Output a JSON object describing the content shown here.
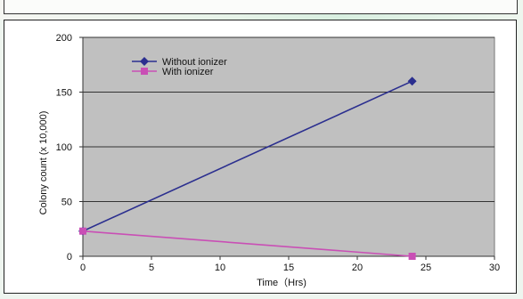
{
  "chart_data": {
    "type": "line",
    "xlabel": "Time（Hrs)",
    "ylabel": "Colony count (x 10,000)",
    "xlim": [
      0,
      30
    ],
    "ylim": [
      0,
      200
    ],
    "xticks": [
      0,
      5,
      10,
      15,
      20,
      25,
      30
    ],
    "yticks": [
      0,
      50,
      100,
      150,
      200
    ],
    "grid": "horizontal",
    "legend_position": "top-left",
    "plot_background": "#c0c0c0",
    "series": [
      {
        "name": "Without ionizer",
        "color": "#2b2f8f",
        "marker": "diamond",
        "x": [
          0,
          24
        ],
        "y": [
          23,
          160
        ]
      },
      {
        "name": "With ionizer",
        "color": "#c94fb5",
        "marker": "square",
        "x": [
          0,
          24
        ],
        "y": [
          23,
          0
        ]
      }
    ]
  }
}
